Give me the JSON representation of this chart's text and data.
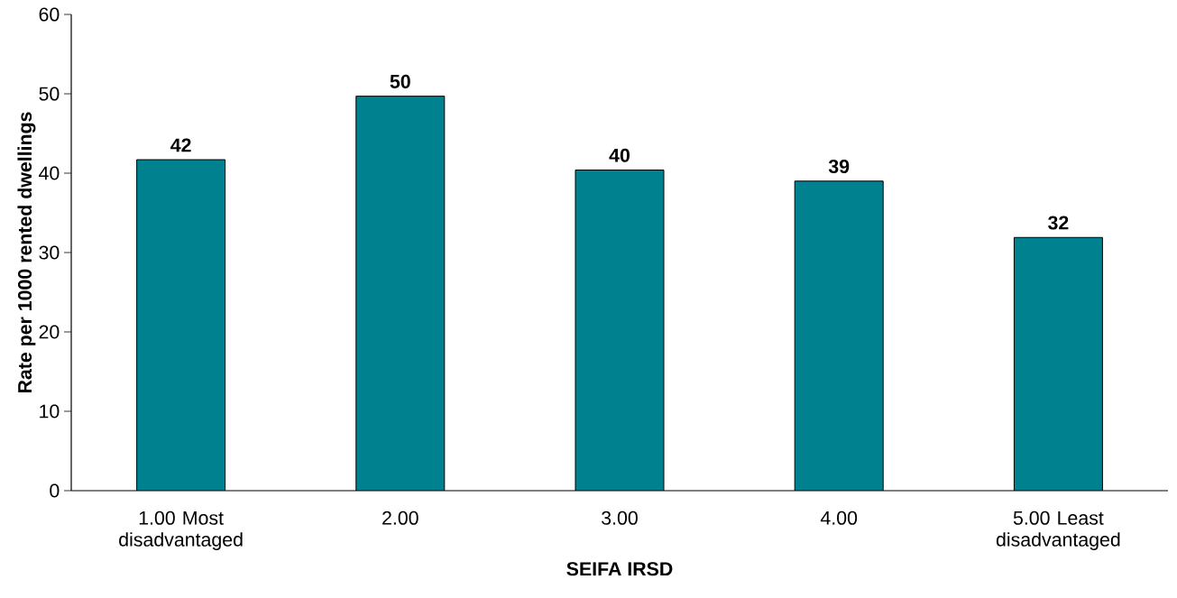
{
  "chart_data": {
    "type": "bar",
    "xlabel": "SEIFA IRSD",
    "ylabel": "Rate per 1000 rented dwellings",
    "categories": [
      "1.00 Most disadvantaged",
      "2.00",
      "3.00",
      "4.00",
      "5.00 Least disadvantaged"
    ],
    "values": [
      41.7,
      49.7,
      40.4,
      39.0,
      31.9
    ],
    "value_labels": [
      "42",
      "50",
      "40",
      "39",
      "32"
    ],
    "color": "#008190",
    "ylim": [
      0,
      60
    ],
    "yticks": [
      0,
      10,
      20,
      30,
      40,
      50,
      60
    ],
    "grid": false
  }
}
